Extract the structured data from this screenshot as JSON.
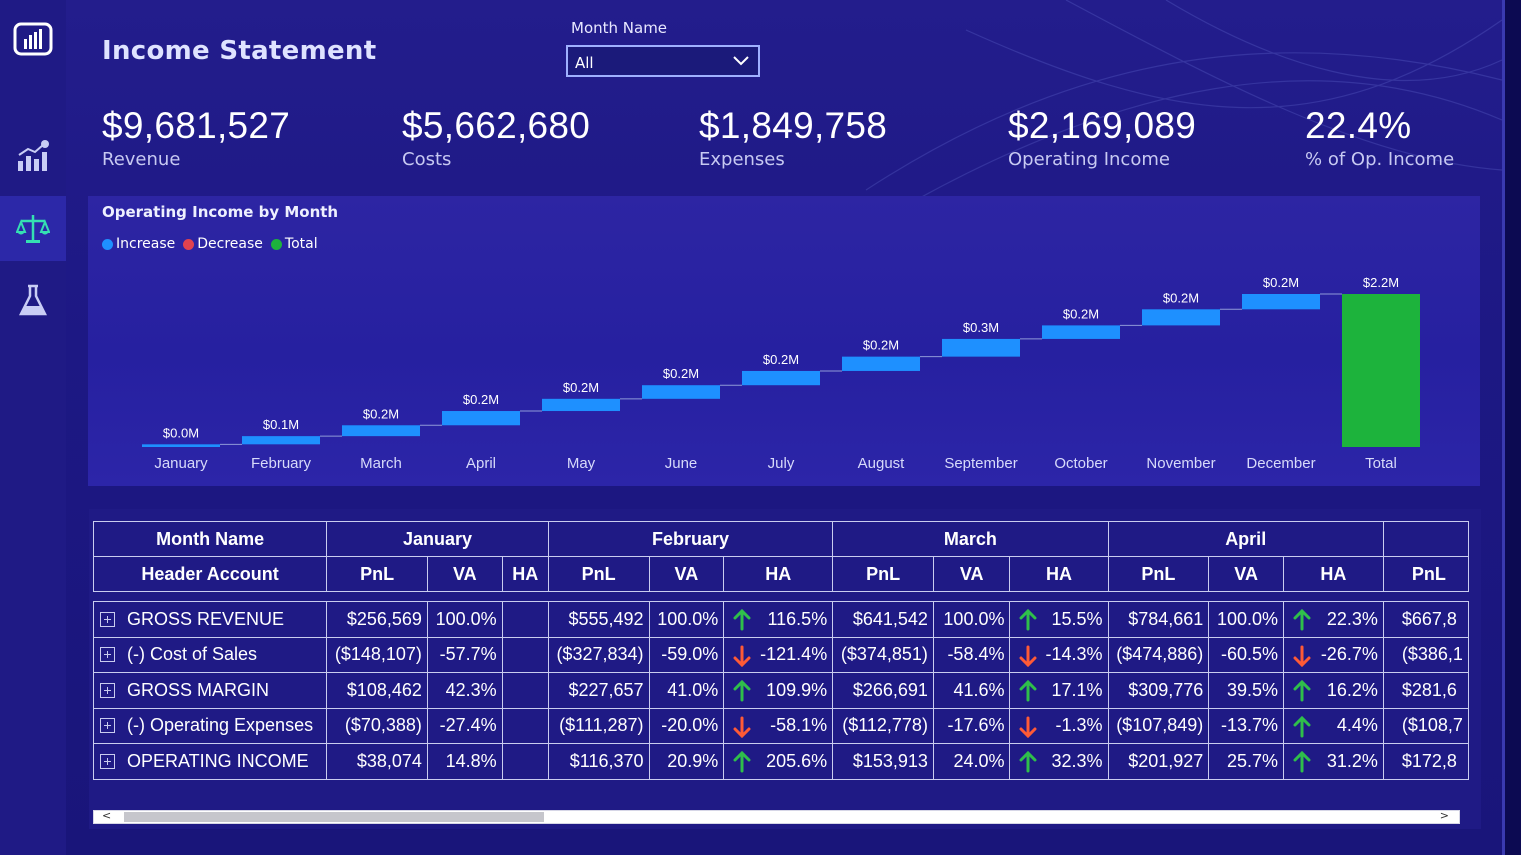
{
  "sidebar": {
    "items": [
      "report-icon",
      "finance-chart-icon",
      "balance-scale-icon",
      "flask-icon"
    ]
  },
  "header": {
    "title": "Income Statement"
  },
  "slicer": {
    "label": "Month Name",
    "value": "All"
  },
  "kpis": [
    {
      "value": "$9,681,527",
      "label": "Revenue"
    },
    {
      "value": "$5,662,680",
      "label": "Costs"
    },
    {
      "value": "$1,849,758",
      "label": "Expenses"
    },
    {
      "value": "$2,169,089",
      "label": "Operating Income"
    },
    {
      "value": "22.4%",
      "label": "% of Op. Income"
    }
  ],
  "colors": {
    "increase": "#1e90ff",
    "decrease": "#e0424f",
    "total": "#1db33c",
    "positive_arrow": "#2fbf4b",
    "negative_arrow": "#ff5a36"
  },
  "chart_title": "Operating Income by Month",
  "legend": [
    "Increase",
    "Decrease",
    "Total"
  ],
  "chart_data": {
    "type": "waterfall",
    "title": "Operating Income by Month",
    "categories": [
      "January",
      "February",
      "March",
      "April",
      "May",
      "June",
      "July",
      "August",
      "September",
      "October",
      "November",
      "December",
      "Total"
    ],
    "values": [
      0.038,
      0.116,
      0.154,
      0.202,
      0.173,
      0.193,
      0.202,
      0.203,
      0.251,
      0.192,
      0.228,
      0.217,
      2.169
    ],
    "labels": [
      "$0.0M",
      "$0.1M",
      "$0.2M",
      "$0.2M",
      "$0.2M",
      "$0.2M",
      "$0.2M",
      "$0.2M",
      "$0.3M",
      "$0.2M",
      "$0.2M",
      "$0.2M",
      "$2.2M"
    ],
    "bar_type": [
      "increase",
      "increase",
      "increase",
      "increase",
      "increase",
      "increase",
      "increase",
      "increase",
      "increase",
      "increase",
      "increase",
      "increase",
      "total"
    ],
    "ylim": [
      0,
      2.169
    ],
    "legend_position": "top-left",
    "grid": false
  },
  "table": {
    "corner_top": "Month Name",
    "corner_bottom": "Header Account",
    "months": [
      "January",
      "February",
      "March",
      "April"
    ],
    "sub_headers": [
      "PnL",
      "VA",
      "HA"
    ],
    "rows": [
      {
        "account": "GROSS REVENUE",
        "jan": [
          "$256,569",
          "100.0%",
          ""
        ],
        "feb": [
          "$555,492",
          "100.0%",
          "116.5%"
        ],
        "feb_dir": "up",
        "mar": [
          "$641,542",
          "100.0%",
          "15.5%"
        ],
        "mar_dir": "up",
        "apr": [
          "$784,661",
          "100.0%",
          "22.3%"
        ],
        "apr_dir": "up",
        "may_pnl": "$667,8"
      },
      {
        "account": "(-) Cost of Sales",
        "jan": [
          "($148,107)",
          "-57.7%",
          ""
        ],
        "feb": [
          "($327,834)",
          "-59.0%",
          "-121.4%"
        ],
        "feb_dir": "down",
        "mar": [
          "($374,851)",
          "-58.4%",
          "-14.3%"
        ],
        "mar_dir": "down",
        "apr": [
          "($474,886)",
          "-60.5%",
          "-26.7%"
        ],
        "apr_dir": "down",
        "may_pnl": "($386,1"
      },
      {
        "account": "GROSS MARGIN",
        "jan": [
          "$108,462",
          "42.3%",
          ""
        ],
        "feb": [
          "$227,657",
          "41.0%",
          "109.9%"
        ],
        "feb_dir": "up",
        "mar": [
          "$266,691",
          "41.6%",
          "17.1%"
        ],
        "mar_dir": "up",
        "apr": [
          "$309,776",
          "39.5%",
          "16.2%"
        ],
        "apr_dir": "up",
        "may_pnl": "$281,6"
      },
      {
        "account": "(-) Operating Expenses",
        "jan": [
          "($70,388)",
          "-27.4%",
          ""
        ],
        "feb": [
          "($111,287)",
          "-20.0%",
          "-58.1%"
        ],
        "feb_dir": "down",
        "mar": [
          "($112,778)",
          "-17.6%",
          "-1.3%"
        ],
        "mar_dir": "down",
        "apr": [
          "($107,849)",
          "-13.7%",
          "4.4%"
        ],
        "apr_dir": "up",
        "may_pnl": "($108,7"
      },
      {
        "account": "OPERATING INCOME",
        "jan": [
          "$38,074",
          "14.8%",
          ""
        ],
        "feb": [
          "$116,370",
          "20.9%",
          "205.6%"
        ],
        "feb_dir": "up",
        "mar": [
          "$153,913",
          "24.0%",
          "32.3%"
        ],
        "mar_dir": "up",
        "apr": [
          "$201,927",
          "25.7%",
          "31.2%"
        ],
        "apr_dir": "up",
        "may_pnl": "$172,8"
      }
    ]
  },
  "scrollbar": {
    "left_arrow": "<",
    "right_arrow": ">"
  }
}
